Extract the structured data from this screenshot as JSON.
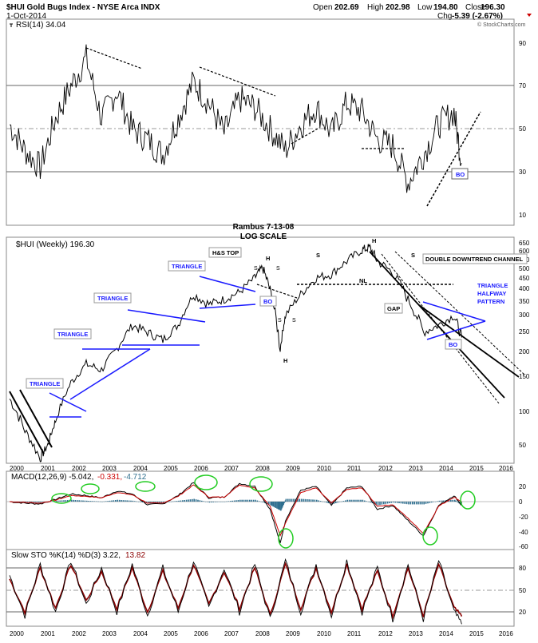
{
  "header": {
    "symbol_line": "$HUI Gold Bugs Index - NYSE Arca INDX",
    "date": "1-Oct-2014",
    "open_label": "Open",
    "open": "202.69",
    "high_label": "High",
    "high": "202.98",
    "low_label": "Low",
    "low": "194.80",
    "close_label": "Close",
    "close": "196.30",
    "chg_label": "Chg",
    "chg": "-5.39 (-2.67%)",
    "watermark": "© StockCharts.com"
  },
  "panels": {
    "rsi": {
      "label": "RSI(14) 34.04",
      "ticks": [
        "90",
        "70",
        "50",
        "30",
        "10"
      ]
    },
    "price": {
      "label": "$HUI (Weekly) 196.30",
      "title_line1": "Rambus  7-13-08",
      "title_line2": "LOG SCALE",
      "ticks": [
        "650",
        "600",
        "550",
        "500",
        "450",
        "400",
        "350",
        "300",
        "250",
        "200",
        "150",
        "100",
        "50"
      ]
    },
    "macd": {
      "label_main": "MACD(12,26,9) -5.042,",
      "label_sig": "-0.331,",
      "label_hist": "-4.712",
      "ticks": [
        "20",
        "0",
        "-20",
        "-40",
        "-60"
      ]
    },
    "sto": {
      "label_main": "Slow STO %K(14) %D(3) 3.22,",
      "label_d": "13.82",
      "ticks": [
        "80",
        "50",
        "20"
      ]
    }
  },
  "x_axis": {
    "years": [
      "2000",
      "2001",
      "2002",
      "2003",
      "2004",
      "2005",
      "2006",
      "2007",
      "2008",
      "2009",
      "2010",
      "2011",
      "2012",
      "2013",
      "2014",
      "2015",
      "2016"
    ]
  },
  "annotations": {
    "triangle_1": "TRIANGLE",
    "triangle_2": "TRIANGLE",
    "triangle_3": "TRIANGLE",
    "triangle_4": "TRIANGLE",
    "triangle_5": "TRIANGLE",
    "hs_top": "H&S TOP",
    "bo_price": "BO",
    "bo_rsi": "BO",
    "bo_price2": "BO",
    "s_1": "S",
    "h_1": "H",
    "s_2": "S",
    "s_3": "S",
    "h_bottom": "H",
    "s_4": "S",
    "s_5": "S",
    "h_2": "H",
    "s_6": "S",
    "nl": "NL",
    "gap": "GAP",
    "double_downtrend": "DOUBLE DOWNTREND CHANNEL",
    "tri_halfway_1": "TRIANGLE",
    "tri_halfway_2": "HALFWAY",
    "tri_halfway_3": "PATTERN"
  },
  "colors": {
    "price_line": "#000000",
    "annotation_blue": "#1a1aff",
    "macd_signal": "#cc0000",
    "macd_hist": "#2f6f8f",
    "highlight_green": "#22cc22",
    "rsi_overbought_fill": "#4f8f4f",
    "rsi_oversold_fill": "#8f3f3f",
    "sto_d": "#8b0000"
  },
  "chart_data": [
    {
      "type": "line",
      "title": "RSI(14) 34.04",
      "ylim": [
        0,
        100
      ],
      "x": [
        2000,
        2000.5,
        2001,
        2001.5,
        2002,
        2002.5,
        2003,
        2003.5,
        2004,
        2004.5,
        2005,
        2005.5,
        2006,
        2006.5,
        2007,
        2007.5,
        2008,
        2008.5,
        2009,
        2009.5,
        2010,
        2010.5,
        2011,
        2011.5,
        2012,
        2012.5,
        2013,
        2013.5,
        2014,
        2014.5,
        2014.75
      ],
      "series": [
        {
          "values": [
            52,
            40,
            32,
            55,
            70,
            83,
            55,
            68,
            50,
            45,
            38,
            55,
            72,
            62,
            48,
            64,
            60,
            50,
            40,
            52,
            60,
            48,
            62,
            58,
            45,
            42,
            25,
            38,
            52,
            58,
            34
          ]
        }
      ]
    },
    {
      "type": "line",
      "title": "$HUI (Weekly) 196.30",
      "ylabel": "LOG SCALE",
      "ylim": [
        30,
        650
      ],
      "x": [
        2000,
        2000.5,
        2001,
        2001.25,
        2001.5,
        2002,
        2002.5,
        2003,
        2003.5,
        2004,
        2004.5,
        2005,
        2005.5,
        2006,
        2006.5,
        2007,
        2007.5,
        2008,
        2008.25,
        2008.5,
        2008.83,
        2009,
        2009.5,
        2010,
        2010.5,
        2011,
        2011.5,
        2011.75,
        2012,
        2012.5,
        2013,
        2013.5,
        2014,
        2014.5,
        2014.75
      ],
      "series": [
        {
          "values": [
            90,
            60,
            42,
            50,
            68,
            110,
            140,
            130,
            170,
            230,
            210,
            190,
            230,
            340,
            300,
            320,
            350,
            420,
            480,
            360,
            170,
            260,
            340,
            420,
            440,
            520,
            600,
            620,
            520,
            450,
            320,
            210,
            230,
            260,
            196.3
          ]
        }
      ]
    },
    {
      "type": "line",
      "title": "MACD(12,26,9) -5.042, -0.331, -4.712",
      "ylim": [
        -65,
        28
      ],
      "x": [
        2000,
        2000.5,
        2001,
        2001.5,
        2002,
        2002.5,
        2003,
        2003.5,
        2004,
        2004.5,
        2005,
        2005.5,
        2006,
        2006.5,
        2007,
        2007.5,
        2008,
        2008.5,
        2008.83,
        2009,
        2009.5,
        2010,
        2010.5,
        2011,
        2011.5,
        2012,
        2012.5,
        2013,
        2013.5,
        2014,
        2014.5,
        2014.75
      ],
      "series": [
        {
          "name": "MACD",
          "values": [
            0,
            -2,
            -3,
            3,
            10,
            8,
            5,
            14,
            10,
            -4,
            -3,
            8,
            25,
            5,
            6,
            24,
            20,
            -10,
            -55,
            -25,
            15,
            20,
            -5,
            18,
            20,
            -10,
            -5,
            -25,
            -45,
            -5,
            8,
            -5.042
          ]
        },
        {
          "name": "Signal",
          "values": [
            0,
            -1,
            -2,
            2,
            8,
            7,
            5,
            12,
            9,
            -2,
            -2,
            7,
            22,
            6,
            6,
            22,
            18,
            -6,
            -45,
            -28,
            12,
            18,
            -2,
            16,
            18,
            -6,
            -4,
            -22,
            -42,
            -6,
            6,
            -0.331
          ]
        }
      ]
    },
    {
      "type": "line",
      "title": "Slow STO %K(14) %D(3) 3.22, 13.82",
      "ylim": [
        0,
        100
      ],
      "x": [
        2000,
        2000.5,
        2001,
        2001.5,
        2002,
        2002.5,
        2003,
        2003.5,
        2004,
        2004.5,
        2005,
        2005.5,
        2006,
        2006.5,
        2007,
        2007.5,
        2008,
        2008.5,
        2009,
        2009.5,
        2010,
        2010.5,
        2011,
        2011.5,
        2012,
        2012.5,
        2013,
        2013.5,
        2014,
        2014.5,
        2014.75
      ],
      "series": [
        {
          "name": "%K",
          "values": [
            70,
            15,
            85,
            20,
            90,
            30,
            80,
            20,
            85,
            15,
            80,
            20,
            90,
            25,
            80,
            20,
            85,
            10,
            90,
            20,
            85,
            15,
            90,
            20,
            80,
            10,
            85,
            10,
            90,
            20,
            3.22
          ]
        },
        {
          "name": "%D",
          "values": [
            65,
            20,
            80,
            25,
            85,
            35,
            75,
            25,
            80,
            20,
            75,
            25,
            85,
            30,
            75,
            25,
            80,
            15,
            85,
            25,
            80,
            20,
            85,
            25,
            75,
            15,
            80,
            15,
            85,
            25,
            13.82
          ]
        }
      ]
    }
  ]
}
